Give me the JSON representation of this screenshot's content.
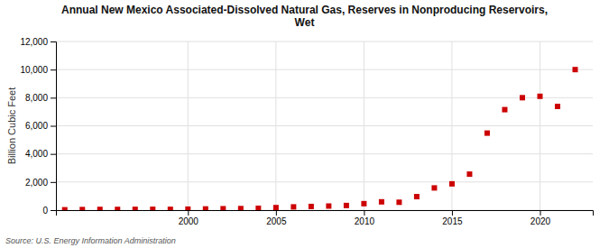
{
  "chart_data": {
    "type": "scatter",
    "title": "Annual New Mexico Associated-Dissolved Natural Gas, Reserves in Nonproducing Reservoirs,\nWet",
    "ylabel": "Billion Cubic Feet",
    "annotations": [
      "Source: U.S. Energy Information Administration"
    ],
    "x": [
      1993,
      1994,
      1995,
      1996,
      1997,
      1998,
      1999,
      2000,
      2001,
      2002,
      2003,
      2004,
      2005,
      2006,
      2007,
      2008,
      2009,
      2010,
      2011,
      2012,
      2013,
      2014,
      2015,
      2016,
      2017,
      2018,
      2019,
      2020,
      2021,
      2022
    ],
    "values": [
      25,
      40,
      50,
      50,
      55,
      60,
      55,
      70,
      85,
      100,
      110,
      130,
      180,
      230,
      260,
      290,
      330,
      460,
      590,
      560,
      960,
      1580,
      1870,
      2560,
      5480,
      7150,
      8000,
      8100,
      7380,
      10000
    ],
    "color": "#cc0000",
    "marker": "square",
    "xlim": [
      1992.5,
      2023
    ],
    "xticks": [
      2000,
      2005,
      2010,
      2015,
      2020
    ],
    "ylim": [
      0,
      12000
    ],
    "yticks": [
      0,
      {
        "value": 2000,
        "label": "2,000"
      },
      {
        "value": 4000,
        "label": "4,000"
      },
      {
        "value": 6000,
        "label": "6,000"
      },
      {
        "value": 8000,
        "label": "8,000"
      },
      {
        "value": 10000,
        "label": "10,000"
      },
      {
        "value": 12000,
        "label": "12,000"
      }
    ],
    "grid": true
  }
}
